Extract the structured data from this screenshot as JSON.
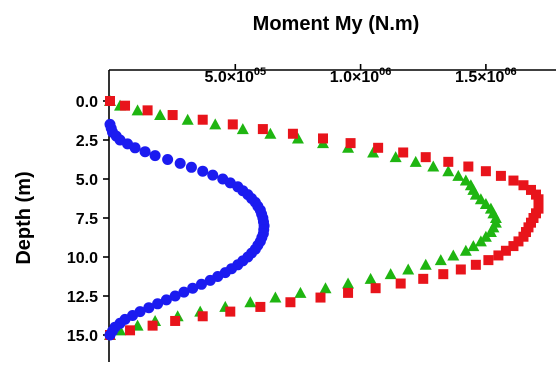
{
  "chart_data": {
    "type": "scatter",
    "title": "",
    "xlabel": "Moment My (N.m)",
    "ylabel": "Depth (m)",
    "x_axis_position": "top",
    "y_axis_inverted": true,
    "xlim": [
      0,
      1700000
    ],
    "ylim": [
      0,
      15.4
    ],
    "x_ticks": [
      {
        "value": 500000,
        "mantissa": "5.0",
        "exponent": "05"
      },
      {
        "value": 1000000,
        "mantissa": "1.0",
        "exponent": "06"
      },
      {
        "value": 1500000,
        "mantissa": "1.5",
        "exponent": "06"
      }
    ],
    "x_tick_times": "×10",
    "y_ticks": [
      {
        "value": 0,
        "label": "0.0"
      },
      {
        "value": 2.5,
        "label": "2.5"
      },
      {
        "value": 5,
        "label": "5.0"
      },
      {
        "value": 7.5,
        "label": "7.5"
      },
      {
        "value": 10,
        "label": "10.0"
      },
      {
        "value": 12.5,
        "label": "12.5"
      },
      {
        "value": 15,
        "label": "15.0"
      }
    ],
    "grid": false,
    "legend": "none",
    "series": [
      {
        "marker": "square",
        "color": "#e8141b",
        "depth": [
          0,
          0.3,
          0.6,
          0.9,
          1.2,
          1.5,
          1.8,
          2.1,
          2.4,
          2.7,
          3.0,
          3.3,
          3.6,
          3.9,
          4.2,
          4.5,
          4.8,
          5.1,
          5.4,
          5.7,
          6.0,
          6.3,
          6.6,
          6.9,
          7.2,
          7.5,
          7.8,
          8.1,
          8.4,
          8.7,
          9.0,
          9.3,
          9.6,
          9.9,
          10.2,
          10.5,
          10.8,
          11.1,
          11.4,
          11.7,
          12.0,
          12.3,
          12.6,
          12.9,
          13.2,
          13.5,
          13.8,
          14.1,
          14.4,
          14.7,
          15.0
        ],
        "moment": [
          0,
          60000,
          150000,
          250000,
          370000,
          490000,
          610000,
          730000,
          850000,
          960000,
          1070000,
          1170000,
          1260000,
          1350000,
          1430000,
          1500000,
          1560000,
          1610000,
          1650000,
          1680000,
          1700000,
          1710000,
          1710000,
          1710000,
          1700000,
          1690000,
          1680000,
          1670000,
          1660000,
          1650000,
          1630000,
          1610000,
          1580000,
          1550000,
          1510000,
          1460000,
          1400000,
          1330000,
          1250000,
          1160000,
          1060000,
          950000,
          840000,
          720000,
          600000,
          480000,
          370000,
          260000,
          170000,
          80000,
          0
        ]
      },
      {
        "marker": "triangle",
        "color": "#1fb511",
        "depth": [
          0,
          0.3,
          0.6,
          0.9,
          1.2,
          1.5,
          1.8,
          2.1,
          2.4,
          2.7,
          3.0,
          3.3,
          3.6,
          3.9,
          4.2,
          4.5,
          4.8,
          5.1,
          5.4,
          5.7,
          6.0,
          6.3,
          6.6,
          6.9,
          7.2,
          7.5,
          7.8,
          8.1,
          8.4,
          8.7,
          9.0,
          9.3,
          9.6,
          9.9,
          10.2,
          10.5,
          10.8,
          11.1,
          11.4,
          11.7,
          12.0,
          12.3,
          12.6,
          12.9,
          13.2,
          13.5,
          13.8,
          14.1,
          14.4,
          14.7,
          15.0
        ],
        "moment": [
          0,
          40000,
          110000,
          200000,
          310000,
          420000,
          530000,
          640000,
          750000,
          850000,
          950000,
          1050000,
          1140000,
          1220000,
          1290000,
          1350000,
          1390000,
          1420000,
          1440000,
          1450000,
          1460000,
          1480000,
          1500000,
          1520000,
          1530000,
          1540000,
          1540000,
          1530000,
          1520000,
          1500000,
          1480000,
          1450000,
          1420000,
          1370000,
          1320000,
          1260000,
          1190000,
          1120000,
          1040000,
          950000,
          860000,
          760000,
          660000,
          560000,
          460000,
          360000,
          270000,
          180000,
          110000,
          40000,
          0
        ]
      },
      {
        "marker": "circle",
        "color": "#1b1bf0",
        "depth": [
          1.5,
          2.0,
          2.5,
          3.0,
          3.5,
          4.0,
          4.5,
          5.0,
          5.5,
          6.0,
          6.5,
          7.0,
          7.5,
          8.0,
          8.5,
          9.0,
          9.5,
          10.0,
          10.5,
          11.0,
          11.5,
          12.0,
          12.5,
          13.0,
          13.5,
          14.0,
          14.5,
          15.0
        ],
        "moment": [
          0,
          10000,
          40000,
          100000,
          180000,
          280000,
          370000,
          450000,
          510000,
          550000,
          580000,
          600000,
          610000,
          615000,
          612000,
          600000,
          580000,
          550000,
          510000,
          460000,
          400000,
          330000,
          260000,
          190000,
          120000,
          60000,
          20000,
          0
        ]
      }
    ]
  }
}
